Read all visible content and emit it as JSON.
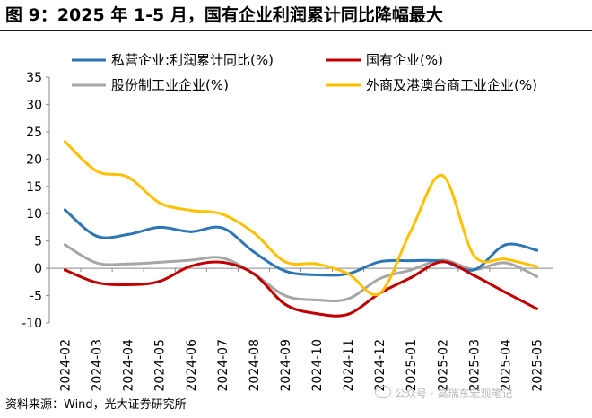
{
  "title": "图 9：2025 年 1-5 月，国有企业利润累计同比降幅最大",
  "source": "资料来源：Wind，光大证券研究所",
  "watermark": "公众号 · 高瑞东宏观笔记",
  "chart_data": {
    "type": "line",
    "title": "",
    "xlabel": "",
    "ylabel": "",
    "ylim": [
      -10,
      35
    ],
    "yticks": [
      35,
      30,
      25,
      20,
      15,
      10,
      5,
      0,
      -5,
      -10
    ],
    "grid": false,
    "legend_position": "top",
    "categories": [
      "2024-02",
      "2024-03",
      "2024-04",
      "2024-05",
      "2024-06",
      "2024-07",
      "2024-08",
      "2024-09",
      "2024-10",
      "2024-11",
      "2024-12",
      "2025-01",
      "2025-02",
      "2025-03",
      "2025-04",
      "2025-05"
    ],
    "series": [
      {
        "name": "私营企业:利润累计同比(%)",
        "color": "#2e75b6",
        "values": [
          10.7,
          5.9,
          6.2,
          7.5,
          6.7,
          7.4,
          3.0,
          -0.5,
          -1.2,
          -1.0,
          1.2,
          1.4,
          1.3,
          -0.3,
          4.3,
          3.3
        ]
      },
      {
        "name": "国有企业(%)",
        "color": "#c00000",
        "values": [
          -0.3,
          -2.6,
          -3.0,
          -2.4,
          0.4,
          1.1,
          -1.0,
          -6.6,
          -8.3,
          -8.4,
          -4.6,
          -1.7,
          1.2,
          -1.3,
          -4.4,
          -7.4
        ]
      },
      {
        "name": "股份制工业企业(%)",
        "color": "#a6a6a6",
        "values": [
          4.3,
          1.0,
          0.8,
          1.1,
          1.5,
          1.9,
          -1.0,
          -5.0,
          -5.8,
          -5.6,
          -1.9,
          -0.3,
          1.5,
          -0.2,
          1.0,
          -1.5
        ]
      },
      {
        "name": "外商及港澳台商工业企业(%)",
        "color": "#ffc000",
        "values": [
          23.2,
          17.8,
          16.7,
          12.0,
          10.6,
          9.9,
          6.5,
          1.2,
          0.8,
          -1.0,
          -4.6,
          6.9,
          17.0,
          2.4,
          1.7,
          0.3
        ]
      }
    ]
  }
}
